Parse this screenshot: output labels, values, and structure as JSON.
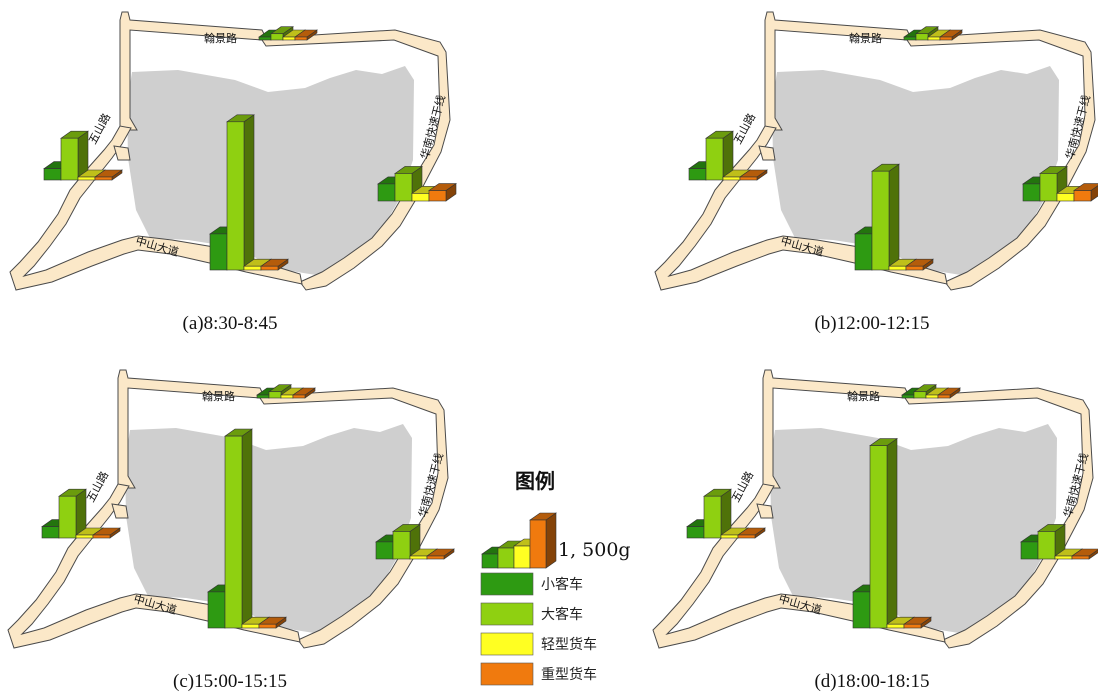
{
  "colors": {
    "road_fill": "#fbe8c8",
    "road_edge": "#4a4a4a",
    "campus": "#cfcfcf",
    "small_bus": "#2e9a12",
    "large_bus": "#8fd011",
    "light_truck": "#ffff22",
    "heavy_truck": "#f07a0e"
  },
  "roads": {
    "hanjing": "翰景路",
    "wushan": "五山路",
    "zhongshan": "中山大道",
    "huanan": "华南快速干线"
  },
  "legend": {
    "title": "图例",
    "scale_label": "1, 500g",
    "items": [
      {
        "key": "small_bus",
        "label": "小客车",
        "color": "#2e9a12"
      },
      {
        "key": "large_bus",
        "label": "大客车",
        "color": "#8fd011"
      },
      {
        "key": "light_truck",
        "label": "轻型货车",
        "color": "#ffff22"
      },
      {
        "key": "heavy_truck",
        "label": "重型货车",
        "color": "#f07a0e"
      }
    ]
  },
  "panels": [
    {
      "caption": "(a)8:30-8:45",
      "sites": {
        "hanjing": [
          50,
          110,
          40,
          30
        ],
        "wushan": [
          120,
          440,
          20,
          20
        ],
        "zhongshan": [
          380,
          1560,
          40,
          40
        ],
        "huanan": [
          180,
          290,
          80,
          110
        ]
      }
    },
    {
      "caption": "(b)12:00-12:15",
      "sites": {
        "hanjing": [
          50,
          110,
          40,
          30
        ],
        "wushan": [
          120,
          440,
          20,
          20
        ],
        "zhongshan": [
          380,
          1040,
          40,
          40
        ],
        "huanan": [
          180,
          290,
          80,
          110
        ]
      }
    },
    {
      "caption": "(c)15:00-15:15",
      "sites": {
        "hanjing": [
          50,
          110,
          40,
          30
        ],
        "wushan": [
          120,
          440,
          20,
          20
        ],
        "zhongshan": [
          380,
          2020,
          40,
          40
        ],
        "huanan": [
          180,
          290,
          30,
          30
        ]
      }
    },
    {
      "caption": "(d)18:00-18:15",
      "sites": {
        "hanjing": [
          50,
          110,
          40,
          30
        ],
        "wushan": [
          120,
          440,
          20,
          20
        ],
        "zhongshan": [
          380,
          1920,
          40,
          40
        ],
        "huanan": [
          180,
          290,
          30,
          30
        ]
      }
    }
  ]
}
